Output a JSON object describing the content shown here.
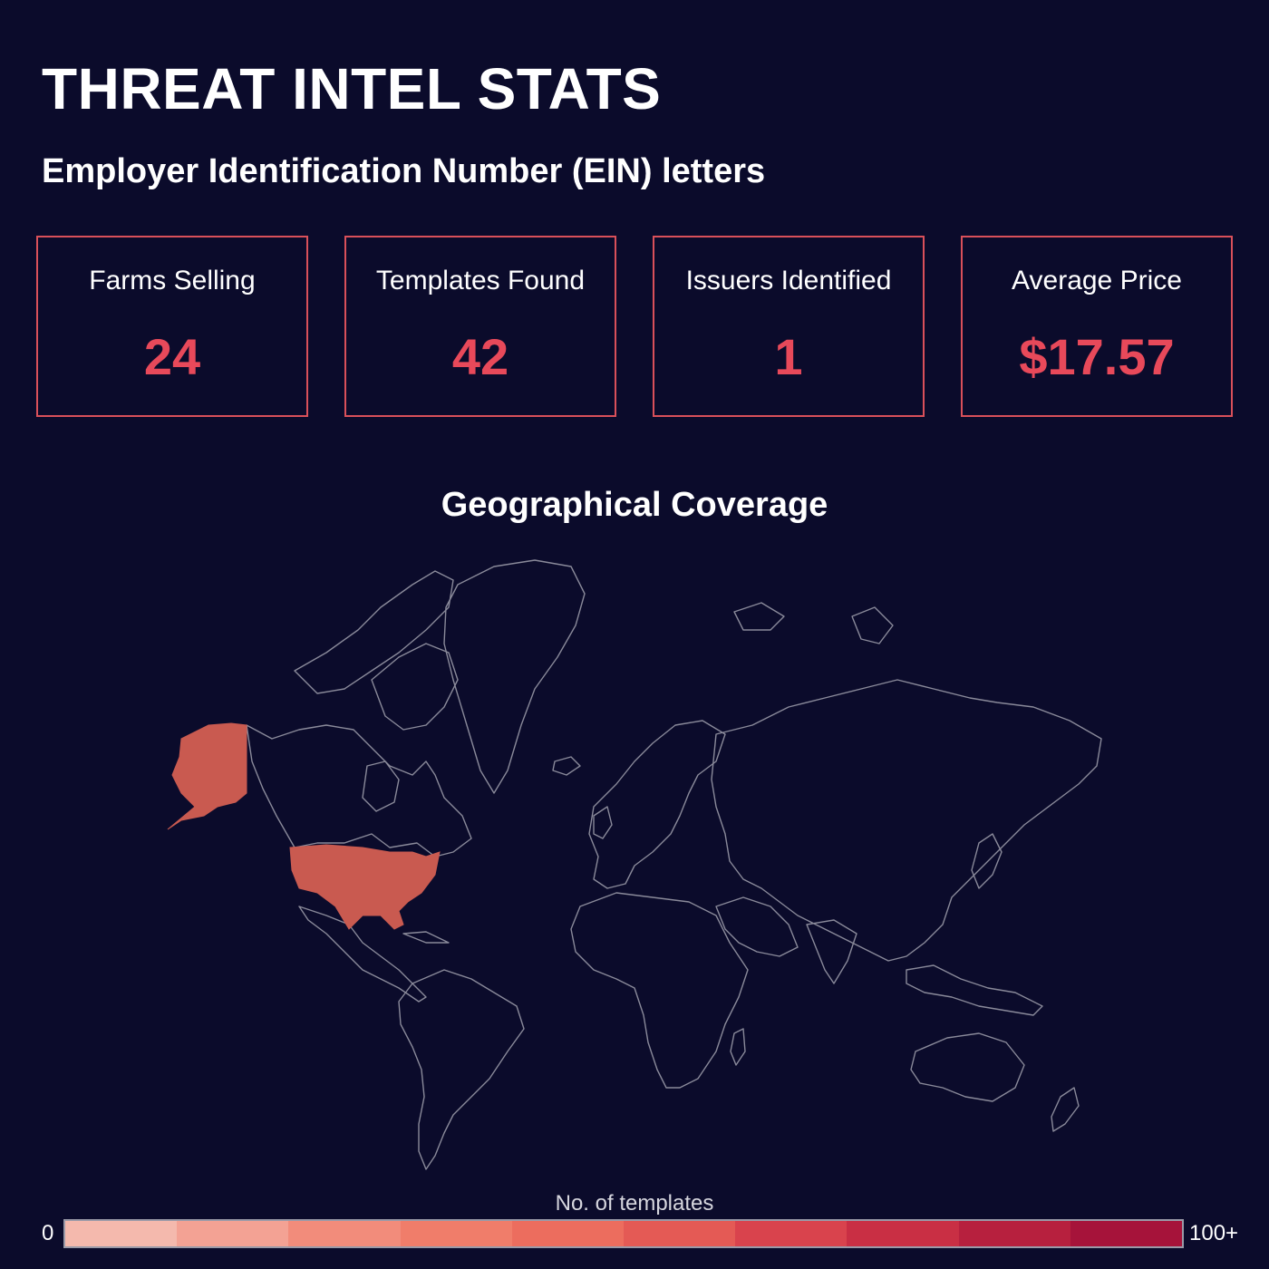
{
  "page": {
    "title": "THREAT INTEL STATS",
    "subtitle": "Employer Identification Number (EIN) letters"
  },
  "stats": [
    {
      "label": "Farms Selling",
      "value": "24"
    },
    {
      "label": "Templates Found",
      "value": "42"
    },
    {
      "label": "Issuers Identified",
      "value": "1"
    },
    {
      "label": "Average Price",
      "value": "$17.57"
    }
  ],
  "map": {
    "title": "Geographical Coverage",
    "highlighted_regions": [
      {
        "name": "United States",
        "fill": "#c95a50"
      },
      {
        "name": "Alaska",
        "fill": "#c95a50"
      }
    ],
    "outline_color": "#8a8a9a"
  },
  "legend": {
    "title": "No. of templates",
    "min_label": "0",
    "max_label": "100+",
    "colors": [
      "#f4b9ad",
      "#f3a294",
      "#f28c7b",
      "#f07d6a",
      "#ec6d5e",
      "#e45a55",
      "#d9434d",
      "#c92f44",
      "#b7203e",
      "#a6133a"
    ]
  },
  "colors": {
    "background": "#0b0b2b",
    "accent": "#e8495a",
    "card_border": "#d9505a"
  }
}
